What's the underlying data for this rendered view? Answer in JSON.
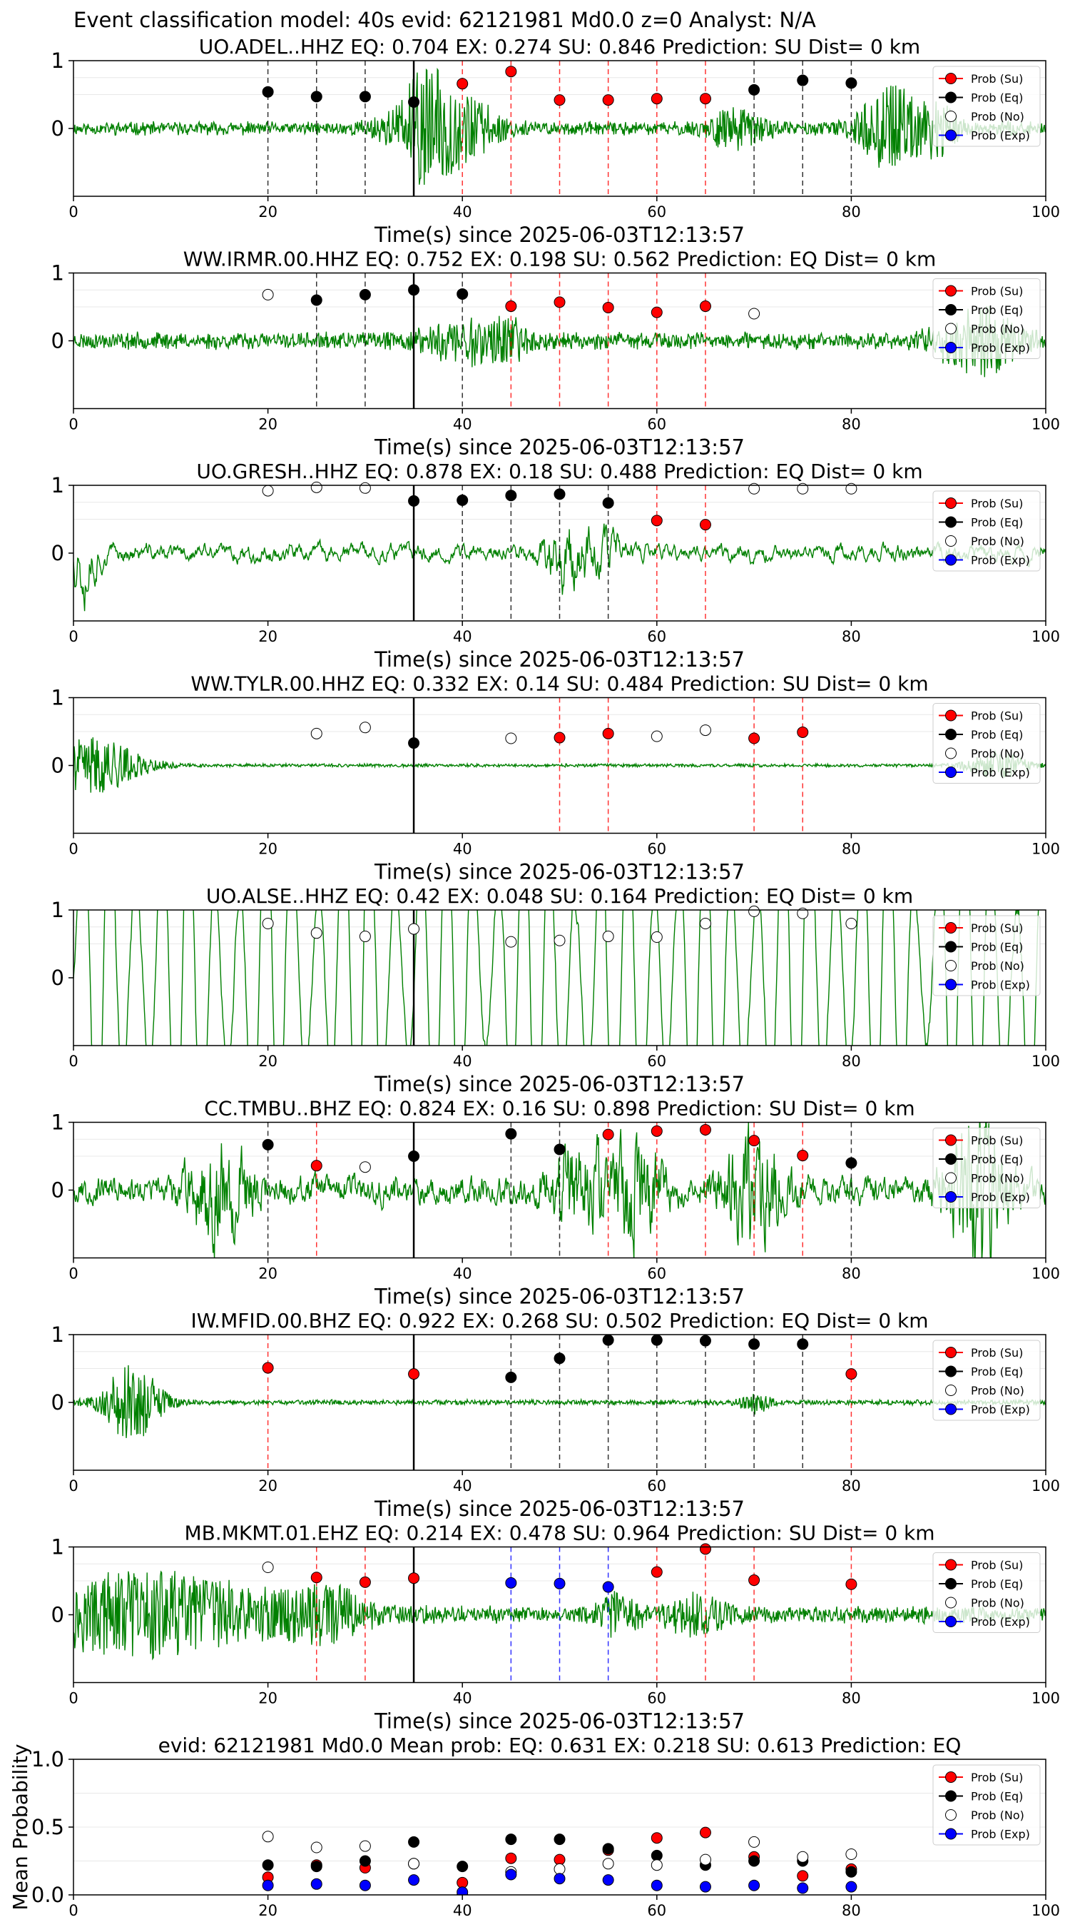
{
  "figure": {
    "suptitle": "Event classification model: 40s evid: 62121981 Md0.0 z=0 Analyst: N/A",
    "xlabel": "Time(s) since 2025-06-03T12:13:57",
    "legend": [
      "Prob (Su)",
      "Prob (Eq)",
      "Prob (No)",
      "Prob (Exp)"
    ],
    "colors": {
      "su": "#ff0000",
      "eq": "#000000",
      "no": "#ffffff",
      "exp": "#0000ff",
      "waveform": "#008000",
      "line_su": "#ff0000",
      "line_eq": "#000000",
      "line_exp": "#0000ff"
    }
  },
  "chart_data": [
    {
      "type": "scatter",
      "station": "UO.ADEL..HHZ",
      "title": "UO.ADEL..HHZ   EQ: 0.704  EX: 0.274  SU: 0.846   Prediction: SU    Dist= 0 km",
      "xlim": [
        0,
        100
      ],
      "ylim": [
        -1,
        1
      ],
      "xticks": [
        0,
        20,
        40,
        60,
        80,
        100
      ],
      "yticks": [
        0,
        1
      ],
      "window_line": 35,
      "waveform": {
        "seed": 11,
        "amp": 0.08,
        "noise": 0.1,
        "smooth": 0.0,
        "bursts": [
          {
            "t": 38,
            "w": 5,
            "a": 0.6
          },
          {
            "t": 36,
            "w": 2,
            "a": 0.35
          },
          {
            "t": 68,
            "w": 3,
            "a": 0.25
          },
          {
            "t": 84,
            "w": 3,
            "a": 0.6
          },
          {
            "t": 89,
            "w": 2,
            "a": 0.35
          }
        ]
      },
      "points": [
        {
          "x": 20,
          "y": 0.54,
          "class": "eq"
        },
        {
          "x": 25,
          "y": 0.47,
          "class": "eq"
        },
        {
          "x": 30,
          "y": 0.47,
          "class": "eq"
        },
        {
          "x": 35,
          "y": 0.39,
          "class": "eq"
        },
        {
          "x": 40,
          "y": 0.66,
          "class": "su"
        },
        {
          "x": 45,
          "y": 0.84,
          "class": "su"
        },
        {
          "x": 50,
          "y": 0.42,
          "class": "su"
        },
        {
          "x": 55,
          "y": 0.42,
          "class": "su"
        },
        {
          "x": 60,
          "y": 0.44,
          "class": "su"
        },
        {
          "x": 65,
          "y": 0.44,
          "class": "su"
        },
        {
          "x": 70,
          "y": 0.57,
          "class": "eq"
        },
        {
          "x": 75,
          "y": 0.71,
          "class": "eq"
        },
        {
          "x": 80,
          "y": 0.67,
          "class": "eq"
        }
      ]
    },
    {
      "type": "scatter",
      "station": "WW.IRMR.00.HHZ",
      "title": "WW.IRMR.00.HHZ   EQ: 0.752  EX: 0.198  SU: 0.562   Prediction: EQ    Dist= 0 km",
      "xlim": [
        0,
        100
      ],
      "ylim": [
        -1,
        1
      ],
      "xticks": [
        0,
        20,
        40,
        60,
        80,
        100
      ],
      "yticks": [
        0,
        1
      ],
      "window_line": 35,
      "waveform": {
        "seed": 23,
        "amp": 0.1,
        "noise": 0.14,
        "smooth": 0.0,
        "bursts": [
          {
            "t": 40,
            "w": 4,
            "a": 0.3
          },
          {
            "t": 45,
            "w": 2,
            "a": 0.2
          },
          {
            "t": 93,
            "w": 4,
            "a": 0.45
          }
        ]
      },
      "points": [
        {
          "x": 20,
          "y": 0.68,
          "class": "no"
        },
        {
          "x": 25,
          "y": 0.6,
          "class": "eq"
        },
        {
          "x": 30,
          "y": 0.68,
          "class": "eq"
        },
        {
          "x": 35,
          "y": 0.75,
          "class": "eq"
        },
        {
          "x": 40,
          "y": 0.69,
          "class": "eq"
        },
        {
          "x": 45,
          "y": 0.51,
          "class": "su"
        },
        {
          "x": 50,
          "y": 0.57,
          "class": "su"
        },
        {
          "x": 55,
          "y": 0.49,
          "class": "su"
        },
        {
          "x": 60,
          "y": 0.42,
          "class": "su"
        },
        {
          "x": 65,
          "y": 0.51,
          "class": "su"
        },
        {
          "x": 70,
          "y": 0.4,
          "class": "no"
        }
      ]
    },
    {
      "type": "scatter",
      "station": "UO.GRESH..HHZ",
      "title": "UO.GRESH..HHZ   EQ: 0.878  EX: 0.18  SU: 0.488   Prediction: EQ    Dist= 0 km",
      "xlim": [
        0,
        100
      ],
      "ylim": [
        -1,
        1
      ],
      "xticks": [
        0,
        20,
        40,
        60,
        80,
        100
      ],
      "yticks": [
        0,
        1
      ],
      "window_line": 35,
      "waveform": {
        "seed": 37,
        "amp": 0.12,
        "noise": 0.05,
        "smooth": 0.75,
        "bursts": [
          {
            "t": 1,
            "w": 1.5,
            "a": 0.45
          },
          {
            "t": 51,
            "w": 2.5,
            "a": 0.45
          },
          {
            "t": 55,
            "w": 1.5,
            "a": 0.25
          }
        ]
      },
      "points": [
        {
          "x": 20,
          "y": 0.92,
          "class": "no"
        },
        {
          "x": 25,
          "y": 0.97,
          "class": "no"
        },
        {
          "x": 30,
          "y": 0.96,
          "class": "no"
        },
        {
          "x": 35,
          "y": 0.77,
          "class": "eq"
        },
        {
          "x": 40,
          "y": 0.78,
          "class": "eq"
        },
        {
          "x": 45,
          "y": 0.85,
          "class": "eq"
        },
        {
          "x": 50,
          "y": 0.87,
          "class": "eq"
        },
        {
          "x": 55,
          "y": 0.74,
          "class": "eq"
        },
        {
          "x": 60,
          "y": 0.48,
          "class": "su"
        },
        {
          "x": 65,
          "y": 0.42,
          "class": "su"
        },
        {
          "x": 70,
          "y": 0.95,
          "class": "no"
        },
        {
          "x": 75,
          "y": 0.95,
          "class": "no"
        },
        {
          "x": 80,
          "y": 0.95,
          "class": "no"
        }
      ]
    },
    {
      "type": "scatter",
      "station": "WW.TYLR.00.HHZ",
      "title": "WW.TYLR.00.HHZ   EQ: 0.332  EX: 0.14  SU: 0.484   Prediction: SU    Dist= 0 km",
      "xlim": [
        0,
        100
      ],
      "ylim": [
        -1,
        1
      ],
      "xticks": [
        0,
        20,
        40,
        60,
        80,
        100
      ],
      "yticks": [
        0,
        1
      ],
      "window_line": 35,
      "waveform": {
        "seed": 41,
        "amp": 0.02,
        "noise": 0.02,
        "smooth": 0.0,
        "bursts": [
          {
            "t": 2,
            "w": 5,
            "a": 0.4
          },
          {
            "t": 95,
            "w": 3,
            "a": 0.2
          }
        ]
      },
      "points": [
        {
          "x": 25,
          "y": 0.47,
          "class": "no"
        },
        {
          "x": 30,
          "y": 0.56,
          "class": "no"
        },
        {
          "x": 35,
          "y": 0.33,
          "class": "eq"
        },
        {
          "x": 45,
          "y": 0.4,
          "class": "no"
        },
        {
          "x": 50,
          "y": 0.41,
          "class": "su"
        },
        {
          "x": 55,
          "y": 0.47,
          "class": "su"
        },
        {
          "x": 60,
          "y": 0.43,
          "class": "no"
        },
        {
          "x": 65,
          "y": 0.52,
          "class": "no"
        },
        {
          "x": 70,
          "y": 0.4,
          "class": "su"
        },
        {
          "x": 75,
          "y": 0.49,
          "class": "su"
        }
      ]
    },
    {
      "type": "scatter",
      "station": "UO.ALSE..HHZ",
      "title": "UO.ALSE..HHZ   EQ: 0.42  EX: 0.048  SU: 0.164   Prediction: EQ    Dist= 0 km",
      "xlim": [
        0,
        100
      ],
      "ylim": [
        -1,
        1
      ],
      "xticks": [
        0,
        20,
        40,
        60,
        80,
        100
      ],
      "yticks": [
        0,
        1
      ],
      "window_line": 35,
      "waveform": {
        "seed": 53,
        "amp": 0.55,
        "noise": 0.03,
        "smooth": 0.92,
        "osc": 0.55,
        "bursts": [
          {
            "t": 96,
            "w": 3,
            "a": 0.3
          }
        ]
      },
      "points": [
        {
          "x": 20,
          "y": 0.8,
          "class": "no"
        },
        {
          "x": 25,
          "y": 0.66,
          "class": "no"
        },
        {
          "x": 30,
          "y": 0.61,
          "class": "no"
        },
        {
          "x": 35,
          "y": 0.72,
          "class": "no"
        },
        {
          "x": 45,
          "y": 0.53,
          "class": "no"
        },
        {
          "x": 50,
          "y": 0.55,
          "class": "no"
        },
        {
          "x": 55,
          "y": 0.61,
          "class": "no"
        },
        {
          "x": 60,
          "y": 0.6,
          "class": "no"
        },
        {
          "x": 65,
          "y": 0.8,
          "class": "no"
        },
        {
          "x": 70,
          "y": 0.98,
          "class": "no"
        },
        {
          "x": 75,
          "y": 0.95,
          "class": "no"
        },
        {
          "x": 80,
          "y": 0.8,
          "class": "no"
        }
      ]
    },
    {
      "type": "scatter",
      "station": "CC.TMBU..BHZ",
      "title": "CC.TMBU..BHZ   EQ: 0.824  EX: 0.16  SU: 0.898   Prediction: SU    Dist= 0 km",
      "xlim": [
        0,
        100
      ],
      "ylim": [
        -1,
        1
      ],
      "xticks": [
        0,
        20,
        40,
        60,
        80,
        100
      ],
      "yticks": [
        0,
        1
      ],
      "window_line": 35,
      "waveform": {
        "seed": 67,
        "amp": 0.12,
        "noise": 0.1,
        "smooth": 0.55,
        "bursts": [
          {
            "t": 15,
            "w": 3,
            "a": 0.5
          },
          {
            "t": 52,
            "w": 3,
            "a": 0.4
          },
          {
            "t": 58,
            "w": 3,
            "a": 0.4
          },
          {
            "t": 70,
            "w": 3,
            "a": 0.5
          },
          {
            "t": 93,
            "w": 3,
            "a": 0.7
          }
        ]
      },
      "points": [
        {
          "x": 20,
          "y": 0.67,
          "class": "eq"
        },
        {
          "x": 25,
          "y": 0.36,
          "class": "su"
        },
        {
          "x": 30,
          "y": 0.34,
          "class": "no"
        },
        {
          "x": 35,
          "y": 0.5,
          "class": "eq"
        },
        {
          "x": 45,
          "y": 0.83,
          "class": "eq"
        },
        {
          "x": 50,
          "y": 0.6,
          "class": "eq"
        },
        {
          "x": 55,
          "y": 0.82,
          "class": "su"
        },
        {
          "x": 60,
          "y": 0.87,
          "class": "su"
        },
        {
          "x": 65,
          "y": 0.89,
          "class": "su"
        },
        {
          "x": 70,
          "y": 0.73,
          "class": "su"
        },
        {
          "x": 75,
          "y": 0.51,
          "class": "su"
        },
        {
          "x": 80,
          "y": 0.4,
          "class": "eq"
        }
      ]
    },
    {
      "type": "scatter",
      "station": "IW.MFID.00.BHZ",
      "title": "IW.MFID.00.BHZ   EQ: 0.922  EX: 0.268  SU: 0.502   Prediction: EQ    Dist= 0 km",
      "xlim": [
        0,
        100
      ],
      "ylim": [
        -1,
        1
      ],
      "xticks": [
        0,
        20,
        40,
        60,
        80,
        100
      ],
      "yticks": [
        0,
        1
      ],
      "window_line": 35,
      "waveform": {
        "seed": 79,
        "amp": 0.03,
        "noise": 0.04,
        "smooth": 0.0,
        "bursts": [
          {
            "t": 6,
            "w": 3,
            "a": 0.55
          },
          {
            "t": 70,
            "w": 1.5,
            "a": 0.15
          }
        ]
      },
      "points": [
        {
          "x": 20,
          "y": 0.51,
          "class": "su"
        },
        {
          "x": 35,
          "y": 0.42,
          "class": "su"
        },
        {
          "x": 45,
          "y": 0.37,
          "class": "eq"
        },
        {
          "x": 50,
          "y": 0.65,
          "class": "eq"
        },
        {
          "x": 55,
          "y": 0.92,
          "class": "eq"
        },
        {
          "x": 60,
          "y": 0.92,
          "class": "eq"
        },
        {
          "x": 65,
          "y": 0.91,
          "class": "eq"
        },
        {
          "x": 70,
          "y": 0.86,
          "class": "eq"
        },
        {
          "x": 75,
          "y": 0.86,
          "class": "eq"
        },
        {
          "x": 80,
          "y": 0.42,
          "class": "su"
        }
      ]
    },
    {
      "type": "scatter",
      "station": "MB.MKMT.01.EHZ",
      "title": "MB.MKMT.01.EHZ   EQ: 0.214  EX: 0.478  SU: 0.964   Prediction: SU    Dist= 0 km",
      "xlim": [
        0,
        100
      ],
      "ylim": [
        -1,
        1
      ],
      "xticks": [
        0,
        20,
        40,
        60,
        80,
        100
      ],
      "yticks": [
        0,
        1
      ],
      "window_line": 35,
      "waveform": {
        "seed": 97,
        "amp": 0.1,
        "noise": 0.12,
        "smooth": 0.0,
        "bursts": [
          {
            "t": 8,
            "w": 14,
            "a": 0.55
          },
          {
            "t": 26,
            "w": 4,
            "a": 0.3
          },
          {
            "t": 56,
            "w": 2,
            "a": 0.3
          },
          {
            "t": 64,
            "w": 3,
            "a": 0.25
          }
        ]
      },
      "points": [
        {
          "x": 20,
          "y": 0.7,
          "class": "no"
        },
        {
          "x": 25,
          "y": 0.55,
          "class": "su"
        },
        {
          "x": 30,
          "y": 0.48,
          "class": "su"
        },
        {
          "x": 35,
          "y": 0.54,
          "class": "su"
        },
        {
          "x": 45,
          "y": 0.47,
          "class": "exp"
        },
        {
          "x": 50,
          "y": 0.46,
          "class": "exp"
        },
        {
          "x": 55,
          "y": 0.41,
          "class": "exp"
        },
        {
          "x": 60,
          "y": 0.63,
          "class": "su"
        },
        {
          "x": 65,
          "y": 0.97,
          "class": "su"
        },
        {
          "x": 70,
          "y": 0.51,
          "class": "su"
        },
        {
          "x": 80,
          "y": 0.45,
          "class": "su"
        }
      ]
    },
    {
      "type": "scatter",
      "title": "evid: 62121981  Md0.0   Mean prob:   EQ: 0.631  EX: 0.218  SU: 0.613   Prediction: EQ",
      "ylabel": "Mean Probability",
      "xlim": [
        0,
        100
      ],
      "ylim": [
        0,
        1
      ],
      "xticks": [
        0,
        20,
        40,
        60,
        80,
        100
      ],
      "yticks": [
        0.0,
        0.5,
        1.0
      ],
      "ytick_labels": [
        "0.0",
        "0.5",
        "1.0"
      ],
      "x": [
        20,
        25,
        30,
        35,
        40,
        45,
        50,
        55,
        60,
        65,
        70,
        75,
        80
      ],
      "series": [
        {
          "name": "Prob (Su)",
          "class": "su",
          "values": [
            0.13,
            0.22,
            0.2,
            0.23,
            0.09,
            0.27,
            0.26,
            0.33,
            0.42,
            0.46,
            0.28,
            0.14,
            0.19
          ]
        },
        {
          "name": "Prob (Eq)",
          "class": "eq",
          "values": [
            0.22,
            0.21,
            0.25,
            0.39,
            0.21,
            0.41,
            0.41,
            0.34,
            0.29,
            0.22,
            0.25,
            0.25,
            0.17
          ]
        },
        {
          "name": "Prob (No)",
          "class": "no",
          "values": [
            0.43,
            0.35,
            0.36,
            0.23,
            0.0,
            0.17,
            0.19,
            0.23,
            0.22,
            0.26,
            0.39,
            0.28,
            0.3
          ]
        },
        {
          "name": "Prob (Exp)",
          "class": "exp",
          "values": [
            0.07,
            0.08,
            0.07,
            0.11,
            0.02,
            0.15,
            0.12,
            0.11,
            0.07,
            0.06,
            0.07,
            0.05,
            0.06
          ]
        }
      ]
    }
  ]
}
